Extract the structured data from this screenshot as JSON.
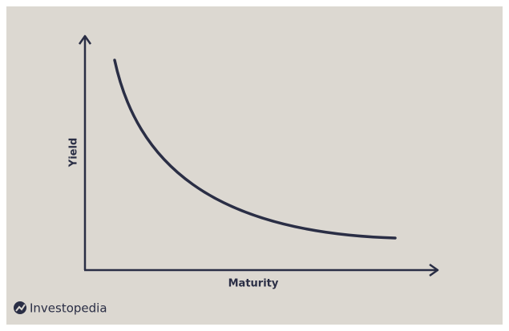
{
  "axes": {
    "y_label": "Yield",
    "x_label": "Maturity"
  },
  "logo": {
    "text": "Investopedia"
  }
}
